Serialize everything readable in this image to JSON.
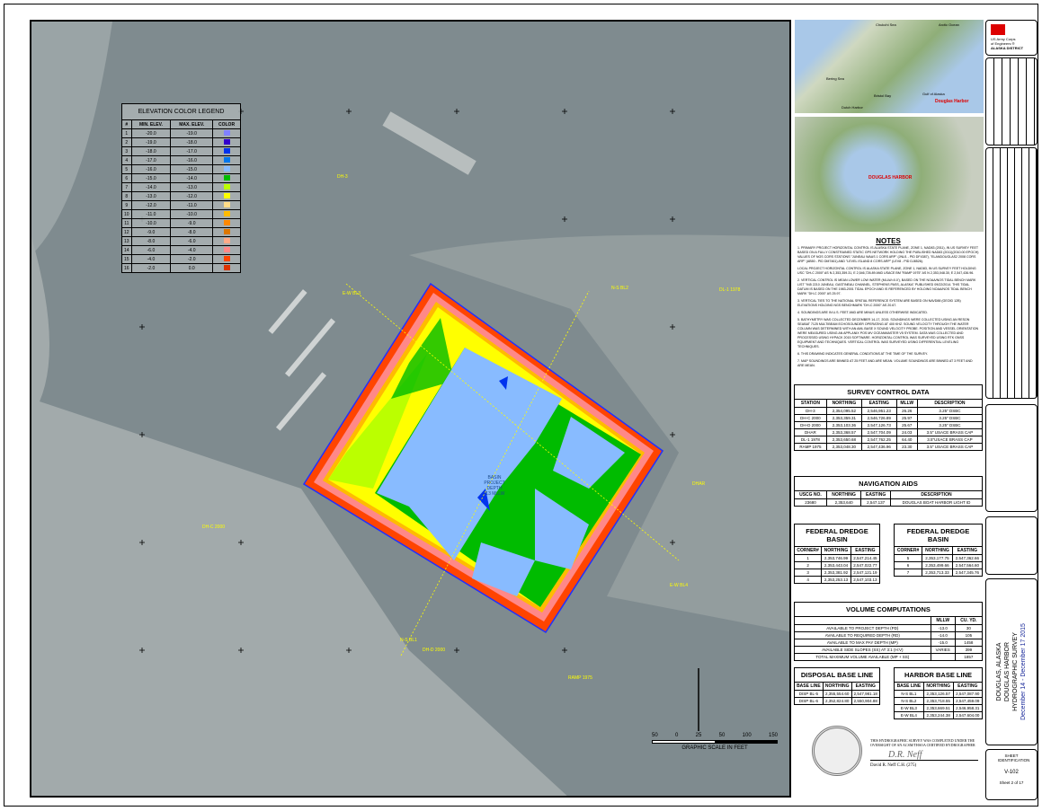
{
  "legend": {
    "title": "ELEVATION COLOR LEGEND",
    "headers": [
      "#",
      "MIN. ELEV.",
      "MAX. ELEV.",
      "COLOR"
    ],
    "rows": [
      [
        "1",
        "-20.0",
        "-19.0",
        "#8080ff"
      ],
      [
        "2",
        "-19.0",
        "-18.0",
        "#3300cc"
      ],
      [
        "3",
        "-18.0",
        "-17.0",
        "#0033ee"
      ],
      [
        "4",
        "-17.0",
        "-16.0",
        "#0077ee"
      ],
      [
        "5",
        "-16.0",
        "-15.0",
        "#88bbff"
      ],
      [
        "6",
        "-15.0",
        "-14.0",
        "#00bb00"
      ],
      [
        "7",
        "-14.0",
        "-13.0",
        "#bbff00"
      ],
      [
        "8",
        "-13.0",
        "-12.0",
        "#ffff00"
      ],
      [
        "9",
        "-12.0",
        "-11.0",
        "#ffdd88"
      ],
      [
        "10",
        "-11.0",
        "-10.0",
        "#ffbb00"
      ],
      [
        "11",
        "-10.0",
        "-9.0",
        "#ff8800"
      ],
      [
        "12",
        "-9.0",
        "-8.0",
        "#dd7700"
      ],
      [
        "13",
        "-8.0",
        "-6.0",
        "#ffaa88"
      ],
      [
        "14",
        "-6.0",
        "-4.0",
        "#ff8888"
      ],
      [
        "15",
        "-4.0",
        "-2.0",
        "#ff4400"
      ],
      [
        "16",
        "-2.0",
        "0.0",
        "#dd3300"
      ]
    ]
  },
  "map": {
    "labels": {
      "dh3": "DH-3",
      "dl1": "DL-1 1978",
      "dhar": "DHAR",
      "dhc": "DH-C 2000",
      "dhd": "DH-D 2000",
      "ramp": "RAMP 1975",
      "ns1": "N-S BL1",
      "ns2": "N-S BL2",
      "ew3": "E-W BL3",
      "ew4": "E-W BL4",
      "basin": "BASIN PROJECT DEPTH -13 MLLW"
    },
    "scale": {
      "ticks": [
        "50",
        "0",
        "25",
        "50",
        "100",
        "150"
      ],
      "caption": "GRAPHIC SCALE IN FEET"
    }
  },
  "insets": {
    "alaska": {
      "labels": [
        "Chukchi Sea",
        "Arctic Ocean",
        "Bering Sea",
        "Bristol Bay",
        "Gulf of Alaska",
        "Dutch Harbor"
      ],
      "marker": "Douglas Harbor"
    },
    "regional": {
      "marker": "DOUGLAS HARBOR"
    }
  },
  "agency": {
    "line1": "US Army Corps",
    "line2": "of Engineers ®",
    "line3": "ALASKA DISTRICT"
  },
  "notes": {
    "title": "NOTES",
    "items": [
      "1. PRIMARY PROJECT HORIZONTAL CONTROL IS ALASKA STATE PLANE, ZONE 1, NAD83 (2011), IN US SURVEY FEET BASED ON A FULLY CONSTRAINED STATIC GPS NETWORK HOLDING THE PUBLISHED NAD83 (2011)(2010.00 EPOCH) VALUES OF NGS CORS STATIONS \"JUNEAU WAAS 1 CORS ARP\" (JNU1 - PID DF4387), \"ELANDOUGLAS2 2008 CORS ARP\" (AB50 - PID DM7461) AND \"LEVEL ISLAND 8 CORS ARP\" (LEV8 - PID DJ8526).",
      "LOCAL PROJECT HORIZONTAL CONTROL IS ALASKA STATE PLANE, ZONE 1, NAD83, IN US SURVEY FEET HOLDING USC \"DH-C 2000\" AS N 2,353,359.31, E 2,546,726.89 AND USACE BM \"RAMP 1975\" AS N 2,353,048.30, E 2,547,436.96.",
      "2. VERTICAL CONTROL IS MEAN LOWER LOW WATER (MLLW=0.0'), BASED ON THE NOAA/NOS TIDAL BENCH MARK LIST \"945 2210 JUNEAU, GASTINEAU CHANNEL, STEPHENS PASS, ALASKA\" PUBLISHED 09/22/2014. THIS TIDAL DATUM IS BASED ON THE 1983-2001 TIDAL EPOCH AND IS REFERENCED BY HOLDING NOAA/NOS TIDAL BENCH MARK \"DH-C 2000\" AS 25.97.",
      "3. VERTICAL TIES TO THE NATIONAL SPATIAL REFERENCE SYSTEM ARE BASED ON NAVD88 (GEOID 12B) ELEVATIONS HOLDING NGS BENCHMARK \"DH-C 2000\" AS 20.67.",
      "4. SOUNDINGS ARE IN U.S. FEET AND ARE MINUS UNLESS OTHERWISE INDICATED.",
      "5. BATHYMETRY WAS COLLECTED DECEMBER 14-17, 2015. SOUNDINGS WERE COLLECTED USING AN RESON SEABAT 7125 MULTIBEAM ECHOSOUNDER OPERATING AT 400 KHZ. SOUND VELOCITY THROUGH THE WATER COLUMN WAS DETERMINED WITH AN AML BASE X SOUND VELOCITY PROBE. POSITION AND VESSEL ORIENTATION WERE MEASURED USING AN APPLANIX POS MV OCEANMASTER V5 SYSTEM. DATA WAS COLLECTED AND PROCESSED USING HYPACK 2015 SOFTWARE. HORIZONTAL CONTROL WAS SURVEYED USING RTK GNSS EQUIPMENT AND TECHNIQUES. VERTICAL CONTROL WAS SURVEYED USING DIFFERENTIAL LEVELING TECHNIQUES.",
      "6. THIS DRAWING INDICATES GENERAL CONDITIONS AT THE TIME OF THE SURVEY.",
      "7. MAP SOUNDINGS ARE BINNED AT 25 FEET AND ARE MEAN. VOLUME SOUNDINGS ARE BINNED AT 3 FEET AND ARE MEAN."
    ]
  },
  "control": {
    "title": "SURVEY CONTROL DATA",
    "headers": [
      "STATION",
      "NORTHING",
      "EASTING",
      "MLLW",
      "DESCRIPTION"
    ],
    "rows": [
      [
        "DH-3",
        "2,354,095.52",
        "2,546,951.23",
        "26.26",
        "3.25\" DSBC"
      ],
      [
        "DH-C 2000",
        "2,353,359.31",
        "2,546,726.89",
        "25.97",
        "3.25\" DSBC"
      ],
      [
        "DH-D 2000",
        "2,353,103.36",
        "2,547,126.73",
        "25.67",
        "3.25\" DSBC"
      ],
      [
        "DHAR",
        "2,353,368.57",
        "2,547,704.09",
        "24.03",
        "3.5\" USACE BRASS CAP"
      ],
      [
        "DL-1 1978",
        "2,353,650.68",
        "2,547,762.25",
        "64.40",
        "3.5\"USACE BRASS CAP"
      ],
      [
        "RAMP 1975",
        "2,353,048.30",
        "2,547,436.96",
        "23.30",
        "3.5\" USACE BRASS CAP"
      ]
    ]
  },
  "navaids": {
    "title": "NAVIGATION AIDS",
    "headers": [
      "USCG NO.",
      "NORTHING",
      "EASTING",
      "DESCRIPTION"
    ],
    "rows": [
      [
        "23680",
        "2,353,640",
        "2,547,137",
        "DOUGLAS BOAT HARBOR LIGHT ID"
      ]
    ]
  },
  "basin1": {
    "title": "FEDERAL DREDGE BASIN",
    "headers": [
      "CORNER#",
      "NORTHING",
      "EASTING"
    ],
    "rows": [
      [
        "1",
        "2,353,746.99",
        "2,547,214.45"
      ],
      [
        "2",
        "2,353,443.04",
        "2,547,022.77"
      ],
      [
        "3",
        "2,353,381.92",
        "2,547,121.19"
      ],
      [
        "4",
        "2,353,253.13",
        "2,547,103.13"
      ]
    ]
  },
  "basin2": {
    "title": "FEDERAL DREDGE BASIN",
    "headers": [
      "CORNER#",
      "NORTHING",
      "EASTING"
    ],
    "rows": [
      [
        "5",
        "2,353,177.75",
        "2,547,362.66"
      ],
      [
        "6",
        "2,353,499.66",
        "2,547,564.60"
      ],
      [
        "7",
        "2,353,713.33",
        "2,547,345.76"
      ]
    ]
  },
  "volume": {
    "title": "VOLUME COMPUTATIONS",
    "headers": [
      "",
      "MLLW",
      "CU. YD."
    ],
    "rows": [
      [
        "AVAILABLE TO PROJECT DEPTH (PD)",
        "-13.0",
        "30"
      ],
      [
        "AVAILABLE TO REQUIRED DEPTH (RD)",
        "-14.0",
        "105"
      ],
      [
        "AVAILABLE TO MAX PAY DEPTH (MP)",
        "-15.0",
        "1458"
      ],
      [
        "AVAILABLE SIDE SLOPES (SS) AT 3:1 (H:V)",
        "VARIES",
        "399"
      ],
      [
        "TOTAL MAXIMUM VOLUME AVAILABLE (MP + SS)",
        "",
        "1857"
      ]
    ]
  },
  "disposal": {
    "title": "DISPOSAL BASE LINE",
    "headers": [
      "BASE LINE",
      "NORTHING",
      "EASTING"
    ],
    "rows": [
      [
        "DISP BL-5",
        "2,355,554.60",
        "2,547,981.18"
      ],
      [
        "DISP BL-6",
        "2,352,824.80",
        "2,550,904.88"
      ]
    ]
  },
  "harbor": {
    "title": "HARBOR BASE LINE",
    "headers": [
      "BASE LINE",
      "NORTHING",
      "EASTING"
    ],
    "rows": [
      [
        "N-S BL1",
        "2,353,126.57",
        "2,547,087.90"
      ],
      [
        "N-S BL2",
        "2,353,718.55",
        "2,547,459.09"
      ],
      [
        "E-W BL3",
        "2,353,669.51",
        "2,546,958.31"
      ],
      [
        "E-W BL4",
        "2,353,244.38",
        "2,547,604.00"
      ]
    ]
  },
  "certification": {
    "text": "THIS HYDROGRAPHIC SURVEY WAS COMPLETED UNDER THE OVERSIGHT OF AN ACSM/THSOA CERTIFIED HYDROGRAPHER",
    "signature": "D.R. Neff",
    "name": "David R. Neff C.H. (275)"
  },
  "title_block": {
    "line1": "DOUGLAS, ALASKA",
    "line2": "DOUGLAS HARBOR",
    "line3": "HYDROGRAPHIC SURVEY",
    "line4": "December 14 - December 17 2015",
    "sheet_label": "SHEET IDENTIFICATION",
    "sheet_id": "V-102",
    "sheet_word": "Sheet",
    "sheet_num": "2",
    "of": "of",
    "sheet_total": "17"
  }
}
